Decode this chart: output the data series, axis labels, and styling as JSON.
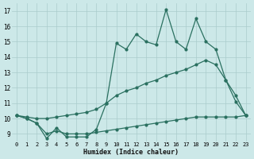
{
  "x": [
    0,
    1,
    2,
    3,
    4,
    5,
    6,
    7,
    8,
    9,
    10,
    11,
    12,
    13,
    14,
    15,
    16,
    17,
    18,
    19,
    20,
    21,
    22,
    23
  ],
  "line_bottom": [
    10.2,
    10.0,
    9.7,
    9.0,
    9.2,
    9.0,
    9.0,
    9.0,
    9.1,
    9.2,
    9.3,
    9.4,
    9.5,
    9.6,
    9.7,
    9.8,
    9.9,
    10.0,
    10.1,
    10.1,
    10.1,
    10.1,
    10.1,
    10.2
  ],
  "line_middle": [
    10.2,
    10.1,
    10.0,
    10.0,
    10.1,
    10.2,
    10.3,
    10.4,
    10.6,
    11.0,
    11.5,
    11.8,
    12.0,
    12.3,
    12.5,
    12.8,
    13.0,
    13.2,
    13.5,
    13.8,
    13.5,
    12.5,
    11.5,
    10.2
  ],
  "line_top": [
    10.2,
    10.0,
    9.7,
    8.7,
    9.4,
    8.8,
    8.8,
    8.8,
    9.3,
    11.0,
    14.9,
    14.5,
    15.5,
    15.0,
    14.8,
    17.1,
    15.0,
    14.5,
    16.5,
    15.0,
    14.5,
    12.5,
    11.1,
    10.2
  ],
  "bg_color": "#cce8e8",
  "grid_color": "#aacccc",
  "line_color": "#2a7060",
  "ylabel_ticks": [
    9,
    10,
    11,
    12,
    13,
    14,
    15,
    16,
    17
  ],
  "xlabel": "Humidex (Indice chaleur)",
  "ylim": [
    8.5,
    17.5
  ],
  "xlim": [
    -0.5,
    23.5
  ]
}
